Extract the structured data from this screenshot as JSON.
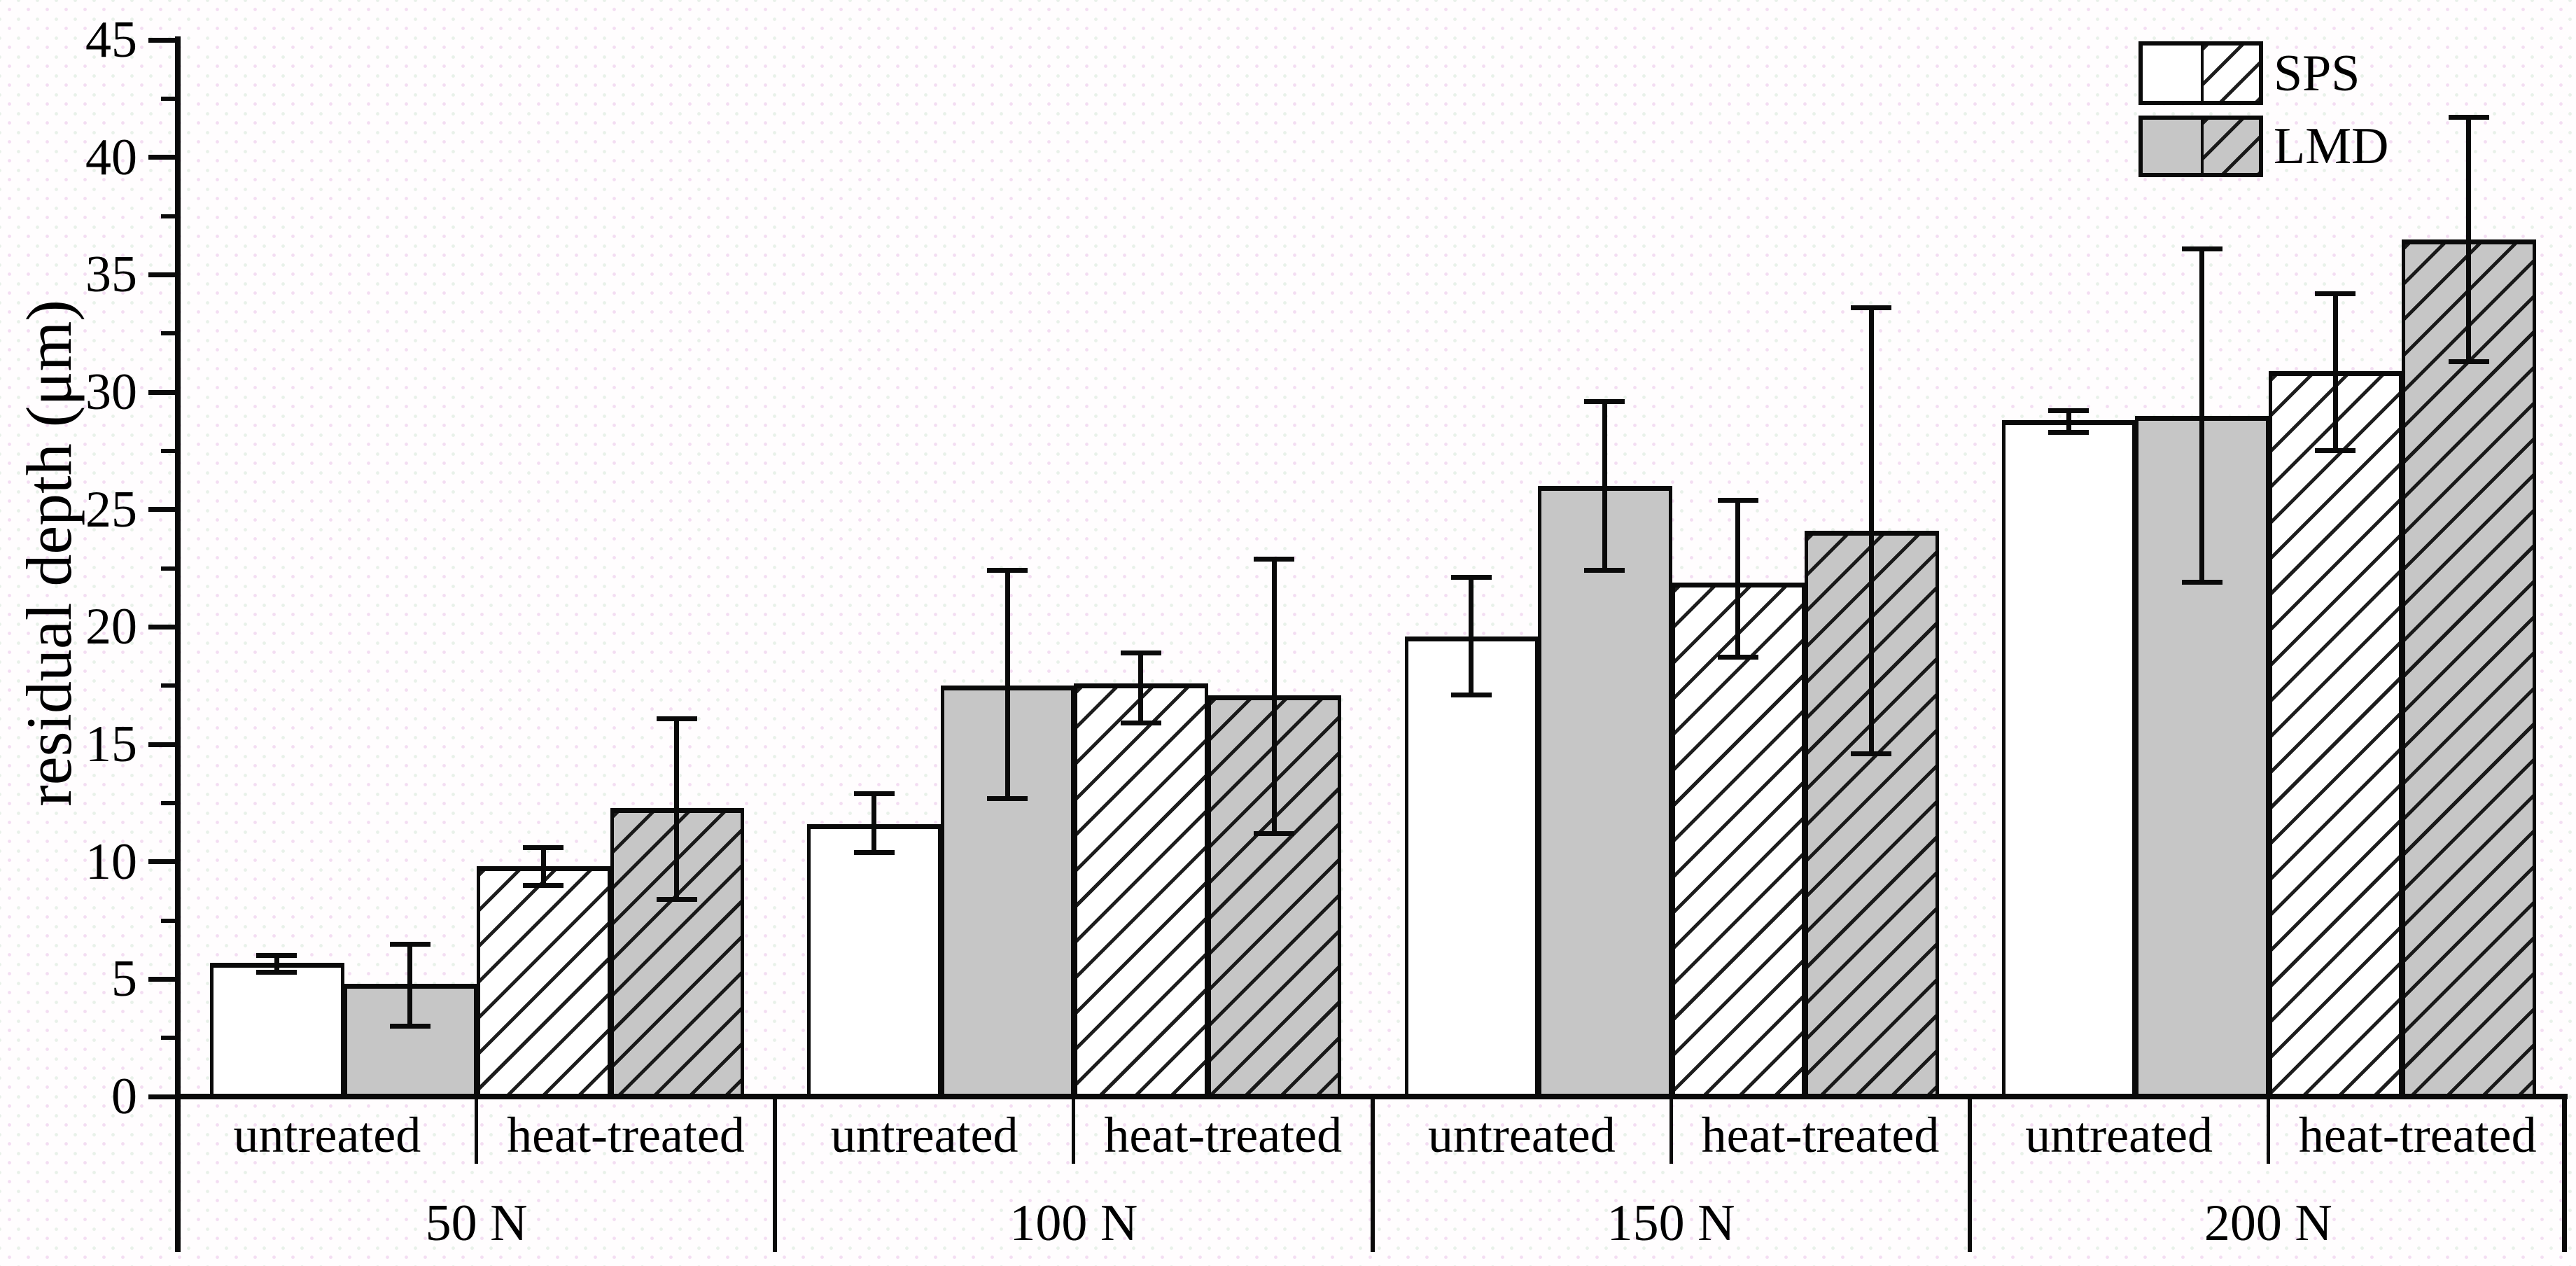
{
  "chart_data": {
    "type": "bar",
    "title": "",
    "xlabel": "",
    "ylabel": "residual depth (μm)",
    "ylim": [
      0,
      45
    ],
    "ytick_labels": [
      "0",
      "5",
      "10",
      "15",
      "20",
      "25",
      "30",
      "35",
      "40",
      "45"
    ],
    "ytick_step": 5,
    "yminor_step": 2.5,
    "grid": false,
    "legend": {
      "position": "top-right",
      "entries": [
        {
          "label": "SPS",
          "fill": "#ffffff"
        },
        {
          "label": "LMD",
          "fill": "#c6c6c6"
        }
      ]
    },
    "line_color": "#0a0a0a",
    "groups": [
      {
        "label": "50 N",
        "sections": [
          {
            "label": "untreated",
            "bars": [
              {
                "series": "SPS",
                "treatment": "untreated",
                "hatched": false,
                "value": 5.7,
                "err_low": 5.3,
                "err_high": 6.0
              },
              {
                "series": "LMD",
                "treatment": "untreated",
                "hatched": false,
                "value": 4.8,
                "err_low": 3.0,
                "err_high": 6.5
              }
            ]
          },
          {
            "label": "heat-treated",
            "bars": [
              {
                "series": "SPS",
                "treatment": "heat-treated",
                "hatched": true,
                "value": 9.8,
                "err_low": 9.0,
                "err_high": 10.6
              },
              {
                "series": "LMD",
                "treatment": "heat-treated",
                "hatched": true,
                "value": 12.3,
                "err_low": 8.4,
                "err_high": 16.1
              }
            ]
          }
        ]
      },
      {
        "label": "100 N",
        "sections": [
          {
            "label": "untreated",
            "bars": [
              {
                "series": "SPS",
                "treatment": "untreated",
                "hatched": false,
                "value": 11.6,
                "err_low": 10.4,
                "err_high": 12.9
              },
              {
                "series": "LMD",
                "treatment": "untreated",
                "hatched": false,
                "value": 17.5,
                "err_low": 12.7,
                "err_high": 22.4
              }
            ]
          },
          {
            "label": "heat-treated",
            "bars": [
              {
                "series": "SPS",
                "treatment": "heat-treated",
                "hatched": true,
                "value": 17.6,
                "err_low": 15.9,
                "err_high": 18.9
              },
              {
                "series": "LMD",
                "treatment": "heat-treated",
                "hatched": true,
                "value": 17.1,
                "err_low": 11.2,
                "err_high": 22.9
              }
            ]
          }
        ]
      },
      {
        "label": "150 N",
        "sections": [
          {
            "label": "untreated",
            "bars": [
              {
                "series": "SPS",
                "treatment": "untreated",
                "hatched": false,
                "value": 19.6,
                "err_low": 17.1,
                "err_high": 22.1
              },
              {
                "series": "LMD",
                "treatment": "untreated",
                "hatched": false,
                "value": 26.0,
                "err_low": 22.4,
                "err_high": 29.6
              }
            ]
          },
          {
            "label": "heat-treated",
            "bars": [
              {
                "series": "SPS",
                "treatment": "heat-treated",
                "hatched": true,
                "value": 21.9,
                "err_low": 18.7,
                "err_high": 25.4
              },
              {
                "series": "LMD",
                "treatment": "heat-treated",
                "hatched": true,
                "value": 24.1,
                "err_low": 14.6,
                "err_high": 33.6
              }
            ]
          }
        ]
      },
      {
        "label": "200 N",
        "sections": [
          {
            "label": "untreated",
            "bars": [
              {
                "series": "SPS",
                "treatment": "untreated",
                "hatched": false,
                "value": 28.8,
                "err_low": 28.3,
                "err_high": 29.2
              },
              {
                "series": "LMD",
                "treatment": "untreated",
                "hatched": false,
                "value": 29.0,
                "err_low": 21.9,
                "err_high": 36.1
              }
            ]
          },
          {
            "label": "heat-treated",
            "bars": [
              {
                "series": "SPS",
                "treatment": "heat-treated",
                "hatched": true,
                "value": 30.9,
                "err_low": 27.5,
                "err_high": 34.2
              },
              {
                "series": "LMD",
                "treatment": "heat-treated",
                "hatched": true,
                "value": 36.5,
                "err_low": 31.3,
                "err_high": 41.7
              }
            ]
          }
        ]
      }
    ]
  }
}
